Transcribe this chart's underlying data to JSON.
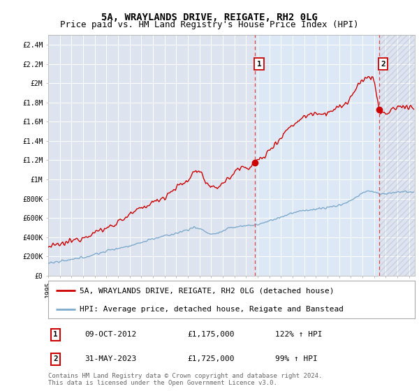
{
  "title": "5A, WRAYLANDS DRIVE, REIGATE, RH2 0LG",
  "subtitle": "Price paid vs. HM Land Registry's House Price Index (HPI)",
  "ylim": [
    0,
    2500000
  ],
  "yticks": [
    0,
    200000,
    400000,
    600000,
    800000,
    1000000,
    1200000,
    1400000,
    1600000,
    1800000,
    2000000,
    2200000,
    2400000
  ],
  "ytick_labels": [
    "£0",
    "£200K",
    "£400K",
    "£600K",
    "£800K",
    "£1M",
    "£1.2M",
    "£1.4M",
    "£1.6M",
    "£1.8M",
    "£2M",
    "£2.2M",
    "£2.4M"
  ],
  "xlim_start": 1995.0,
  "xlim_end": 2026.5,
  "xticks": [
    1995,
    1996,
    1997,
    1998,
    1999,
    2000,
    2001,
    2002,
    2003,
    2004,
    2005,
    2006,
    2007,
    2008,
    2009,
    2010,
    2011,
    2012,
    2013,
    2014,
    2015,
    2016,
    2017,
    2018,
    2019,
    2020,
    2021,
    2022,
    2023,
    2024,
    2025,
    2026
  ],
  "background_color": "#ffffff",
  "plot_bg_color": "#dde4f0",
  "grid_color": "#ffffff",
  "red_line_color": "#cc0000",
  "blue_line_color": "#7eaacc",
  "sale1_x": 2012.77,
  "sale1_y": 1175000,
  "sale1_label": "1",
  "sale2_x": 2023.42,
  "sale2_y": 1725000,
  "sale2_label": "2",
  "shade_between_color": "#dce8f5",
  "shade_after_color": "#dde4f0",
  "dashed_line_color": "#dd4444",
  "legend_label_red": "5A, WRAYLANDS DRIVE, REIGATE, RH2 0LG (detached house)",
  "legend_label_blue": "HPI: Average price, detached house, Reigate and Banstead",
  "table_row1": [
    "1",
    "09-OCT-2012",
    "£1,175,000",
    "122% ↑ HPI"
  ],
  "table_row2": [
    "2",
    "31-MAY-2023",
    "£1,725,000",
    "99% ↑ HPI"
  ],
  "footnote": "Contains HM Land Registry data © Crown copyright and database right 2024.\nThis data is licensed under the Open Government Licence v3.0.",
  "title_fontsize": 10,
  "subtitle_fontsize": 9,
  "tick_fontsize": 7,
  "legend_fontsize": 8,
  "table_fontsize": 8,
  "footnote_fontsize": 6.5
}
